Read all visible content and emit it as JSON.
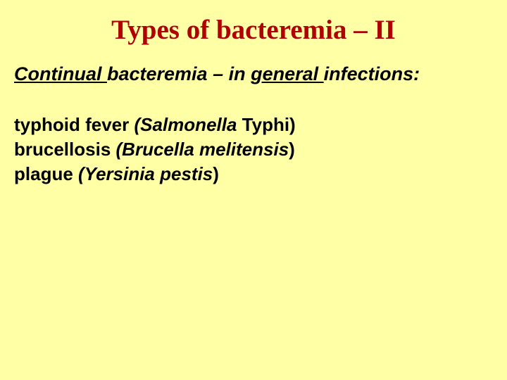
{
  "background_color": "#ffffa6",
  "title": {
    "text": "Types of bacteremia – II",
    "color": "#b00000",
    "font_family": "Times New Roman",
    "font_size_pt": 30,
    "font_weight": "bold"
  },
  "subheading": {
    "seg1": "Continual ",
    "seg2": "bacteremia – in ",
    "seg3": "general ",
    "seg4": "infections:",
    "font_size_pt": 20,
    "font_style": "bold italic",
    "underlined_segments": [
      "Continual",
      "general"
    ]
  },
  "body": {
    "font_size_pt": 20,
    "font_weight": "bold",
    "lines": [
      {
        "plain": "typhoid fever ",
        "italic_open": "(",
        "italic_mid": "Salmonella ",
        "italic_close": "Typhi)"
      },
      {
        "plain": "brucellosis ",
        "italic_open": "(",
        "italic_mid": "Brucella melitensis",
        "italic_close": ")"
      },
      {
        "plain": "plague ",
        "italic_open": "(",
        "italic_mid": "Yersinia pestis",
        "italic_close": ")"
      }
    ]
  },
  "l1_plain": "typhoid fever ",
  "l1_paren_open": "(",
  "l1_genus": "Salmonella ",
  "l1_rest": "Typhi)",
  "l2_plain": "brucellosis ",
  "l2_paren_open": "(",
  "l2_genus": "Brucella melitensis",
  "l2_rest": ")",
  "l3_plain": "plague ",
  "l3_paren_open": "(",
  "l3_genus": "Yersinia pestis",
  "l3_rest": ")"
}
